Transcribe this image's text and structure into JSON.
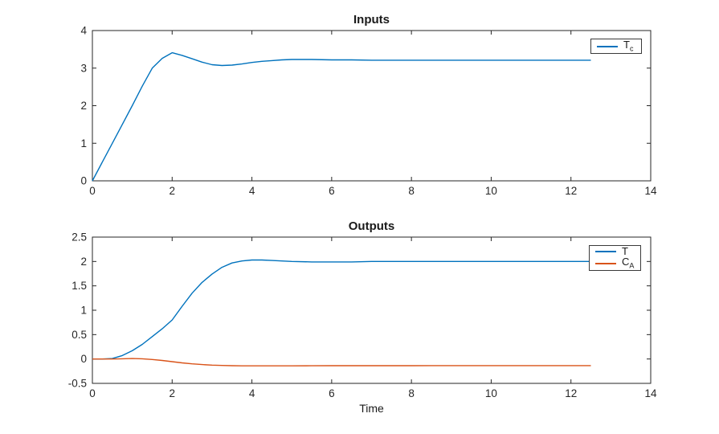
{
  "figure": {
    "background_color": "#ffffff",
    "axis_color": "#262626",
    "text_color": "#1a1a1a"
  },
  "chart_data": [
    {
      "type": "line",
      "title": "Inputs",
      "xlabel": "",
      "ylabel": "",
      "xlim": [
        0,
        14
      ],
      "ylim": [
        0,
        4
      ],
      "xticks": [
        0,
        2,
        4,
        6,
        8,
        10,
        12,
        14
      ],
      "yticks": [
        0,
        1,
        2,
        3,
        4
      ],
      "grid": false,
      "legend_position": "northeast",
      "series": [
        {
          "name": "T_c",
          "label_main": "T",
          "label_sub": "c",
          "color": "#0072BD",
          "x": [
            0,
            0.25,
            0.5,
            0.75,
            1,
            1.25,
            1.5,
            1.75,
            2,
            2.25,
            2.5,
            2.75,
            3,
            3.25,
            3.5,
            3.75,
            4,
            4.25,
            4.5,
            4.75,
            5,
            5.5,
            6,
            6.5,
            7,
            7.5,
            8,
            8.5,
            9,
            9.5,
            10,
            10.5,
            11,
            11.5,
            12,
            12.5
          ],
          "y": [
            0,
            0.5,
            1,
            1.5,
            2,
            2.52,
            3.0,
            3.26,
            3.41,
            3.34,
            3.25,
            3.16,
            3.09,
            3.07,
            3.08,
            3.11,
            3.15,
            3.18,
            3.2,
            3.22,
            3.23,
            3.23,
            3.22,
            3.22,
            3.21,
            3.21,
            3.21,
            3.21,
            3.21,
            3.21,
            3.21,
            3.21,
            3.21,
            3.21,
            3.21,
            3.21
          ]
        }
      ]
    },
    {
      "type": "line",
      "title": "Outputs",
      "xlabel": "Time",
      "ylabel": "",
      "xlim": [
        0,
        14
      ],
      "ylim": [
        -0.5,
        2.5
      ],
      "xticks": [
        0,
        2,
        4,
        6,
        8,
        10,
        12,
        14
      ],
      "yticks": [
        -0.5,
        0,
        0.5,
        1,
        1.5,
        2,
        2.5
      ],
      "grid": false,
      "legend_position": "northeast",
      "series": [
        {
          "name": "T",
          "label_main": "T",
          "label_sub": "",
          "color": "#0072BD",
          "x": [
            0,
            0.25,
            0.5,
            0.75,
            1,
            1.25,
            1.5,
            1.75,
            2,
            2.25,
            2.5,
            2.75,
            3,
            3.25,
            3.5,
            3.75,
            4,
            4.25,
            4.5,
            4.75,
            5,
            5.5,
            6,
            6.5,
            7,
            7.5,
            8,
            8.5,
            9,
            9.5,
            10,
            10.5,
            11,
            11.5,
            12,
            12.5
          ],
          "y": [
            0,
            0,
            0.01,
            0.07,
            0.17,
            0.3,
            0.46,
            0.62,
            0.8,
            1.08,
            1.35,
            1.57,
            1.74,
            1.88,
            1.97,
            2.01,
            2.03,
            2.03,
            2.02,
            2.01,
            2.0,
            1.99,
            1.99,
            1.99,
            2.0,
            2.0,
            2.0,
            2.0,
            2.0,
            2.0,
            2.0,
            2.0,
            2.0,
            2.0,
            2.0,
            2.0
          ]
        },
        {
          "name": "C_A",
          "label_main": "C",
          "label_sub": "A",
          "color": "#D95319",
          "x": [
            0,
            0.25,
            0.5,
            0.75,
            1,
            1.25,
            1.5,
            1.75,
            2,
            2.25,
            2.5,
            2.75,
            3,
            3.25,
            3.5,
            3.75,
            4,
            4.25,
            4.5,
            4.75,
            5,
            5.5,
            6,
            6.5,
            7,
            7.5,
            8,
            8.5,
            9,
            9.5,
            10,
            10.5,
            11,
            11.5,
            12,
            12.5
          ],
          "y": [
            0,
            0,
            0,
            0.005,
            0.01,
            0.005,
            -0.01,
            -0.03,
            -0.055,
            -0.08,
            -0.1,
            -0.115,
            -0.125,
            -0.132,
            -0.137,
            -0.14,
            -0.141,
            -0.141,
            -0.141,
            -0.14,
            -0.14,
            -0.139,
            -0.138,
            -0.138,
            -0.137,
            -0.137,
            -0.137,
            -0.136,
            -0.136,
            -0.136,
            -0.136,
            -0.136,
            -0.136,
            -0.136,
            -0.136,
            -0.136
          ]
        }
      ]
    }
  ]
}
